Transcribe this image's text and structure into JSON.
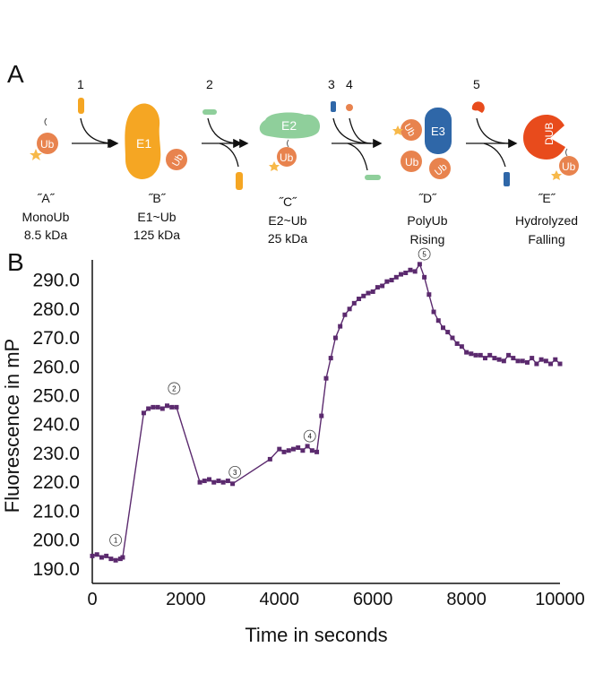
{
  "panel_a": {
    "label": "A",
    "steps": [
      "1",
      "2",
      "3",
      "4",
      "5"
    ],
    "species": [
      {
        "code": "˝A˝",
        "line1": "MonoUb",
        "line2": "8.5 kDa"
      },
      {
        "code": "˝B˝",
        "line1": "E1~Ub",
        "line2": "125 kDa"
      },
      {
        "code": "˝C˝",
        "line1": "E2~Ub",
        "line2": "25 kDa"
      },
      {
        "code": "˝D˝",
        "line1": "PolyUb",
        "line2": "Rising"
      },
      {
        "code": "˝E˝",
        "line1": "Hydrolyzed",
        "line2": "Falling"
      }
    ],
    "glyphs": {
      "ub": "Ub",
      "e1": "E1",
      "e2": "E2",
      "e3": "E3",
      "dub": "DUB"
    },
    "colors": {
      "ub": "#e8834e",
      "e1": "#f5a623",
      "e2": "#8fcf9b",
      "e3": "#2f67a8",
      "dub": "#e84b1c",
      "star": "#f7b94a"
    }
  },
  "panel_b": {
    "label": "B",
    "chart_data": {
      "type": "line",
      "xlabel": "Time in seconds",
      "ylabel": "Fluorescence in mP",
      "xlim": [
        0,
        10000
      ],
      "ylim": [
        185,
        297
      ],
      "x_ticks": [
        0,
        2000,
        4000,
        6000,
        8000,
        10000
      ],
      "y_ticks": [
        190.0,
        200.0,
        210.0,
        220.0,
        230.0,
        240.0,
        250.0,
        260.0,
        270.0,
        280.0,
        290.0
      ],
      "x_tick_labels": [
        "0",
        "2000",
        "4000",
        "6000",
        "8000",
        "10000"
      ],
      "y_tick_labels": [
        "190.0",
        "200.0",
        "210.0",
        "220.0",
        "230.0",
        "240.0",
        "250.0",
        "260.0",
        "270.0",
        "280.0",
        "290.0"
      ],
      "grid": false,
      "color": "#5b2a6e",
      "series": [
        {
          "x": [
            0,
            100,
            200,
            300,
            400,
            500,
            600,
            650,
            1100,
            1200,
            1300,
            1400,
            1500,
            1600,
            1700,
            1800,
            2300,
            2400,
            2500,
            2600,
            2700,
            2800,
            2900,
            3000,
            3800,
            4000,
            4100,
            4200,
            4300,
            4400,
            4500,
            4600,
            4700,
            4800,
            4900,
            5000,
            5100,
            5200,
            5300,
            5400,
            5500,
            5600,
            5700,
            5800,
            5900,
            6000,
            6100,
            6200,
            6300,
            6400,
            6500,
            6600,
            6700,
            6800,
            6900,
            7000,
            7100,
            7200,
            7300,
            7400,
            7500,
            7600,
            7700,
            7800,
            7900,
            8000,
            8100,
            8200,
            8300,
            8400,
            8500,
            8600,
            8700,
            8800,
            8900,
            9000,
            9100,
            9200,
            9300,
            9400,
            9500,
            9600,
            9700,
            9800,
            9900,
            10000
          ],
          "y": [
            194.5,
            195,
            194,
            194.5,
            193.5,
            193,
            193.5,
            194,
            244,
            245.5,
            246,
            246,
            245.5,
            246.5,
            246,
            246,
            220,
            220.5,
            221,
            220,
            220.5,
            220,
            220.5,
            219.5,
            228,
            231.5,
            230.5,
            231,
            231.5,
            232,
            231,
            232.5,
            231,
            230.5,
            243,
            256,
            263,
            270,
            274,
            278,
            280,
            282,
            283.5,
            284.5,
            285.5,
            286,
            287.5,
            288,
            289.5,
            290,
            291,
            292,
            292.5,
            293.5,
            293,
            295.5,
            291,
            285,
            279,
            276,
            273.5,
            272,
            270,
            268,
            267,
            265,
            264.5,
            264,
            264,
            263,
            264,
            263,
            262.5,
            262,
            264,
            263,
            262,
            262,
            261.5,
            263,
            261,
            262.5,
            262,
            261,
            262.5,
            261
          ]
        }
      ],
      "markers": [
        {
          "label": "1",
          "x": 500,
          "y": 200
        },
        {
          "label": "2",
          "x": 1750,
          "y": 252.5
        },
        {
          "label": "3",
          "x": 3050,
          "y": 223.5
        },
        {
          "label": "4",
          "x": 4650,
          "y": 236
        },
        {
          "label": "5",
          "x": 7100,
          "y": 299
        }
      ]
    }
  }
}
